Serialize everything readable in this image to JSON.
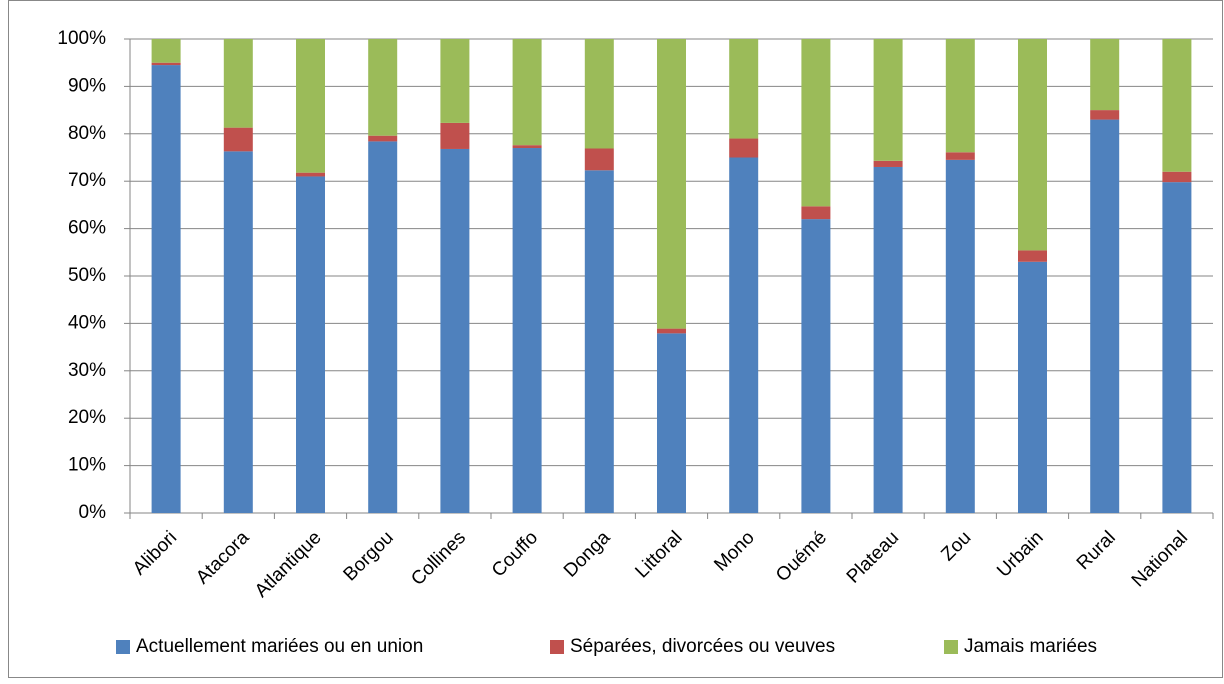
{
  "chart_data": {
    "type": "stacked_bar",
    "categories": [
      "Alibori",
      "Atacora",
      "Atlantique",
      "Borgou",
      "Collines",
      "Couffo",
      "Donga",
      "Littoral",
      "Mono",
      "Ouémé",
      "Plateau",
      "Zou",
      "Urbain",
      "Rural",
      "National"
    ],
    "series": [
      {
        "name": "Actuellement mariées ou en union",
        "color": "#4f81bd",
        "values": [
          94.5,
          76.3,
          71,
          78.4,
          76.8,
          77,
          72.3,
          37.9,
          75,
          62,
          73,
          74.5,
          53,
          83,
          69.8
        ]
      },
      {
        "name": "Séparées, divorcées ou veuves",
        "color": "#c0504d",
        "values": [
          0.5,
          5,
          0.8,
          1.2,
          5.5,
          0.6,
          4.6,
          1,
          4,
          2.7,
          1.3,
          1.6,
          2.4,
          2,
          2.2
        ]
      },
      {
        "name": "Jamais mariées",
        "color": "#9bbb59",
        "values": [
          5,
          18.7,
          28.2,
          20.4,
          17.7,
          22.4,
          23.1,
          61.1,
          21,
          35.3,
          25.7,
          23.9,
          44.6,
          15,
          28
        ]
      }
    ],
    "ylim": [
      0,
      100
    ],
    "yticks": [
      {
        "value": 0,
        "label": "0%"
      },
      {
        "value": 10,
        "label": "10%"
      },
      {
        "value": 20,
        "label": "20%"
      },
      {
        "value": 30,
        "label": "30%"
      },
      {
        "value": 40,
        "label": "40%"
      },
      {
        "value": 50,
        "label": "50%"
      },
      {
        "value": 60,
        "label": "60%"
      },
      {
        "value": 70,
        "label": "70%"
      },
      {
        "value": 80,
        "label": "80%"
      },
      {
        "value": 90,
        "label": "90%"
      },
      {
        "value": 100,
        "label": "100%"
      }
    ],
    "grid": true,
    "legend": "bottom"
  }
}
